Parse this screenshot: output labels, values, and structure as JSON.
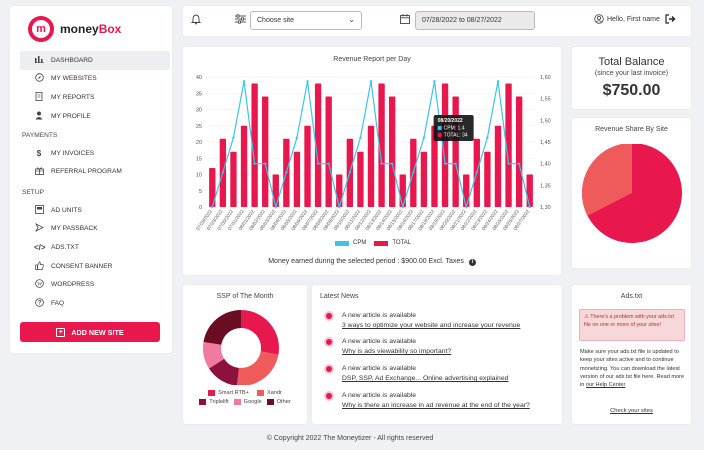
{
  "brand": {
    "logo_letter": "m",
    "name_plain": "money",
    "name_accent": "Box"
  },
  "sidebar": {
    "items_main": [
      {
        "label": "DASHBOARD",
        "icon": "chart-icon"
      },
      {
        "label": "MY WEBSITES",
        "icon": "compass-icon"
      },
      {
        "label": "MY REPORTS",
        "icon": "document-icon"
      },
      {
        "label": "MY PROFILE",
        "icon": "user-icon"
      }
    ],
    "section_payments": "PAYMENTS",
    "items_payments": [
      {
        "label": "MY INVOICES",
        "icon": "dollar-icon"
      },
      {
        "label": "REFERRAL PROGRAM",
        "icon": "gift-icon"
      }
    ],
    "section_setup": "SETUP",
    "items_setup": [
      {
        "label": "AD UNITS",
        "icon": "ad-units-icon"
      },
      {
        "label": "MY PASSBACK",
        "icon": "passback-icon"
      },
      {
        "label": "ADS.TXT",
        "icon": "code-icon"
      },
      {
        "label": "CONSENT BANNER",
        "icon": "thumbs-up-icon"
      },
      {
        "label": "WORDPRESS",
        "icon": "wordpress-icon"
      },
      {
        "label": "FAQ",
        "icon": "question-icon"
      }
    ],
    "add_button": "ADD NEW SITE"
  },
  "header": {
    "site_select": "Choose site",
    "date_range": "07/28/2022 to 08/27/2022",
    "greeting": "Hello, First name"
  },
  "revenue": {
    "title": "Revenue Report per Day",
    "legend_cpm": "CPM",
    "legend_total": "TOTAL",
    "earned_text": "Money earned during the selected period : $900.00 Excl. Taxes",
    "tooltip_date": "08/20/2022",
    "tooltip_cpm": "CPM: 1.4",
    "tooltip_total": "TOTAL: 34"
  },
  "chart_data": {
    "type": "bar",
    "title": "Revenue Report per Day",
    "categories": [
      "07/28/2022",
      "07/29/2022",
      "07/30/2022",
      "07/31/2022",
      "08/01/2022",
      "08/02/2022",
      "08/03/2022",
      "08/04/2022",
      "08/05/2022",
      "08/06/2022",
      "08/07/2022",
      "08/08/2022",
      "08/09/2022",
      "08/10/2022",
      "08/11/2022",
      "08/12/2022",
      "08/13/2022",
      "08/14/2022",
      "08/15/2022",
      "08/16/2022",
      "08/17/2022",
      "08/18/2022",
      "08/19/2022",
      "08/20/2022",
      "08/21/2022",
      "08/22/2022",
      "08/23/2022",
      "08/24/2022",
      "08/25/2022",
      "08/26/2022",
      "08/27/2022"
    ],
    "series": [
      {
        "name": "TOTAL",
        "axis": "left",
        "type": "bar",
        "values": [
          12,
          21,
          17,
          25,
          38,
          34,
          10,
          21,
          17,
          25,
          38,
          34,
          10,
          21,
          17,
          25,
          38,
          34,
          10,
          21,
          17,
          25,
          38,
          34,
          10,
          21,
          17,
          25,
          38,
          34,
          10
        ]
      },
      {
        "name": "CPM",
        "axis": "right",
        "type": "line",
        "values": [
          1.3,
          1.38,
          1.46,
          1.59,
          1.4,
          1.4,
          1.3,
          1.38,
          1.46,
          1.59,
          1.4,
          1.4,
          1.3,
          1.38,
          1.46,
          1.59,
          1.4,
          1.4,
          1.3,
          1.38,
          1.46,
          1.59,
          1.4,
          1.4,
          1.3,
          1.38,
          1.46,
          1.59,
          1.4,
          1.4,
          1.3
        ]
      }
    ],
    "ylim": [
      0,
      40
    ],
    "y2lim": [
      1.3,
      1.6
    ],
    "yticks": [
      0,
      5,
      10,
      15,
      20,
      25,
      30,
      35,
      40
    ],
    "y2ticks": [
      "1,30",
      "1,35",
      "1,40",
      "1,45",
      "1,50",
      "1,55",
      "1,60"
    ],
    "colors": {
      "TOTAL": "#e8174e",
      "CPM": "#3ec3e8"
    },
    "legend": "bottom"
  },
  "balance": {
    "title": "Total Balance",
    "subtitle": "(since your last invoice)",
    "amount": "$750.00"
  },
  "share": {
    "title": "Revenue Share By Site"
  },
  "ssp": {
    "title": "SSP of The Month",
    "legend": [
      {
        "label": "Smart RTB+",
        "color": "#e8174e"
      },
      {
        "label": "Xandr",
        "color": "#ef5a5a"
      },
      {
        "label": "Triplelift",
        "color": "#8c1140"
      },
      {
        "label": "Google",
        "color": "#f07aa0"
      },
      {
        "label": "Other",
        "color": "#6b0d22"
      }
    ]
  },
  "news": {
    "title": "Latest News",
    "items": [
      {
        "title": "A new article is available",
        "link": "3 ways to optimize your website and increase your revenue"
      },
      {
        "title": "A new article is available",
        "link": "Why is ads viewability so important?"
      },
      {
        "title": "A new article is available",
        "link": "DSP, SSP, Ad Exchange... Online advertising explained"
      },
      {
        "title": "A new article is available",
        "link": "Why is there an increase in ad revenue at the end of the year?"
      }
    ]
  },
  "adstxt": {
    "title": "Ads.txt",
    "alert": "There's a problem with your ads.txt file on one or more of your sites!",
    "body": "Make sure your ads.txt file is updated to keep your sites active and to continue monetizing. You can download the latest version of our ads.txt file here. Read more in",
    "body_link": "our Help Center",
    "check_link": "Check your sites"
  },
  "footer": "© Copyright 2022 The Moneytizer - All rights reserved"
}
